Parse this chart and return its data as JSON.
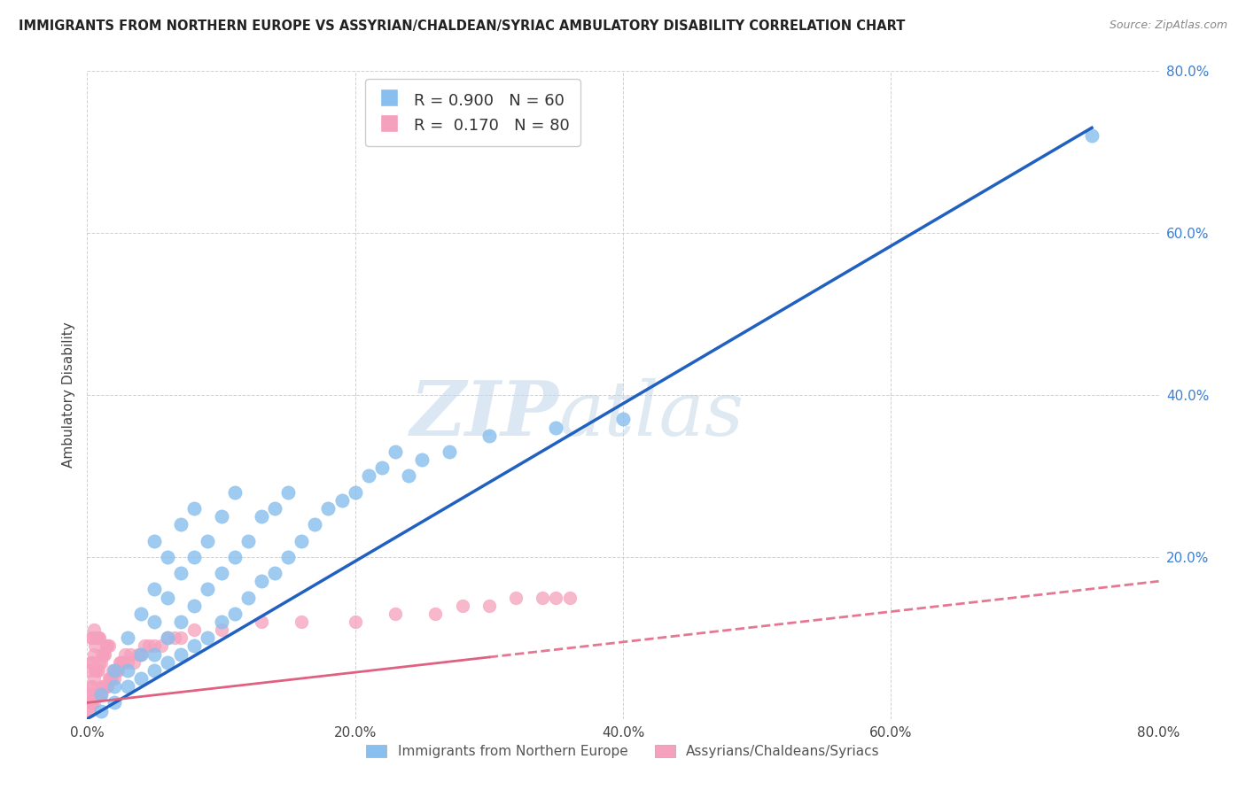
{
  "title": "IMMIGRANTS FROM NORTHERN EUROPE VS ASSYRIAN/CHALDEAN/SYRIAC AMBULATORY DISABILITY CORRELATION CHART",
  "source": "Source: ZipAtlas.com",
  "ylabel": "Ambulatory Disability",
  "xlabel": "",
  "watermark_zip": "ZIP",
  "watermark_atlas": "atlas",
  "legend1_label": "R = 0.900   N = 60",
  "legend2_label": "R =  0.170   N = 80",
  "blue_color": "#88bfee",
  "pink_color": "#f5a0bc",
  "blue_line_color": "#2060c0",
  "pink_line_color": "#e06080",
  "xlim": [
    0,
    0.8
  ],
  "ylim": [
    0,
    0.8
  ],
  "xticks": [
    0.0,
    0.2,
    0.4,
    0.6,
    0.8
  ],
  "yticks": [
    0.0,
    0.2,
    0.4,
    0.6,
    0.8
  ],
  "xticklabels": [
    "0.0%",
    "20.0%",
    "40.0%",
    "60.0%",
    "80.0%"
  ],
  "yticklabels": [
    "",
    "20.0%",
    "40.0%",
    "60.0%",
    "80.0%"
  ],
  "blue_trend_x0": 0.0,
  "blue_trend_y0": 0.0,
  "blue_trend_x1": 0.75,
  "blue_trend_y1": 0.73,
  "pink_trend_x0": 0.0,
  "pink_trend_y0": 0.02,
  "pink_trend_x1": 0.8,
  "pink_trend_y1": 0.17,
  "blue_scatter_x": [
    0.01,
    0.01,
    0.02,
    0.02,
    0.02,
    0.03,
    0.03,
    0.03,
    0.04,
    0.04,
    0.04,
    0.05,
    0.05,
    0.05,
    0.05,
    0.05,
    0.06,
    0.06,
    0.06,
    0.06,
    0.07,
    0.07,
    0.07,
    0.07,
    0.08,
    0.08,
    0.08,
    0.08,
    0.09,
    0.09,
    0.09,
    0.1,
    0.1,
    0.1,
    0.11,
    0.11,
    0.11,
    0.12,
    0.12,
    0.13,
    0.13,
    0.14,
    0.14,
    0.15,
    0.15,
    0.16,
    0.17,
    0.18,
    0.19,
    0.2,
    0.21,
    0.22,
    0.23,
    0.24,
    0.25,
    0.27,
    0.3,
    0.35,
    0.4,
    0.75
  ],
  "blue_scatter_y": [
    0.01,
    0.03,
    0.02,
    0.04,
    0.06,
    0.04,
    0.06,
    0.1,
    0.05,
    0.08,
    0.13,
    0.06,
    0.08,
    0.12,
    0.16,
    0.22,
    0.07,
    0.1,
    0.15,
    0.2,
    0.08,
    0.12,
    0.18,
    0.24,
    0.09,
    0.14,
    0.2,
    0.26,
    0.1,
    0.16,
    0.22,
    0.12,
    0.18,
    0.25,
    0.13,
    0.2,
    0.28,
    0.15,
    0.22,
    0.17,
    0.25,
    0.18,
    0.26,
    0.2,
    0.28,
    0.22,
    0.24,
    0.26,
    0.27,
    0.28,
    0.3,
    0.31,
    0.33,
    0.3,
    0.32,
    0.33,
    0.35,
    0.36,
    0.37,
    0.72
  ],
  "pink_scatter_x": [
    0.001,
    0.001,
    0.002,
    0.002,
    0.002,
    0.003,
    0.003,
    0.003,
    0.003,
    0.004,
    0.004,
    0.004,
    0.004,
    0.005,
    0.005,
    0.005,
    0.005,
    0.006,
    0.006,
    0.006,
    0.007,
    0.007,
    0.007,
    0.008,
    0.008,
    0.008,
    0.009,
    0.009,
    0.009,
    0.01,
    0.01,
    0.011,
    0.011,
    0.012,
    0.012,
    0.013,
    0.013,
    0.014,
    0.014,
    0.015,
    0.015,
    0.016,
    0.016,
    0.017,
    0.018,
    0.019,
    0.02,
    0.021,
    0.022,
    0.023,
    0.024,
    0.025,
    0.026,
    0.027,
    0.028,
    0.03,
    0.032,
    0.035,
    0.038,
    0.04,
    0.043,
    0.046,
    0.05,
    0.055,
    0.06,
    0.065,
    0.07,
    0.08,
    0.1,
    0.13,
    0.16,
    0.2,
    0.23,
    0.26,
    0.28,
    0.3,
    0.32,
    0.34,
    0.35,
    0.36
  ],
  "pink_scatter_y": [
    0.01,
    0.03,
    0.01,
    0.03,
    0.06,
    0.02,
    0.04,
    0.07,
    0.1,
    0.02,
    0.04,
    0.07,
    0.1,
    0.02,
    0.05,
    0.08,
    0.11,
    0.03,
    0.06,
    0.09,
    0.03,
    0.06,
    0.1,
    0.03,
    0.06,
    0.1,
    0.03,
    0.07,
    0.1,
    0.03,
    0.07,
    0.04,
    0.08,
    0.04,
    0.08,
    0.04,
    0.08,
    0.04,
    0.09,
    0.04,
    0.09,
    0.05,
    0.09,
    0.05,
    0.05,
    0.06,
    0.05,
    0.06,
    0.06,
    0.06,
    0.07,
    0.07,
    0.07,
    0.07,
    0.08,
    0.07,
    0.08,
    0.07,
    0.08,
    0.08,
    0.09,
    0.09,
    0.09,
    0.09,
    0.1,
    0.1,
    0.1,
    0.11,
    0.11,
    0.12,
    0.12,
    0.12,
    0.13,
    0.13,
    0.14,
    0.14,
    0.15,
    0.15,
    0.15,
    0.15
  ]
}
